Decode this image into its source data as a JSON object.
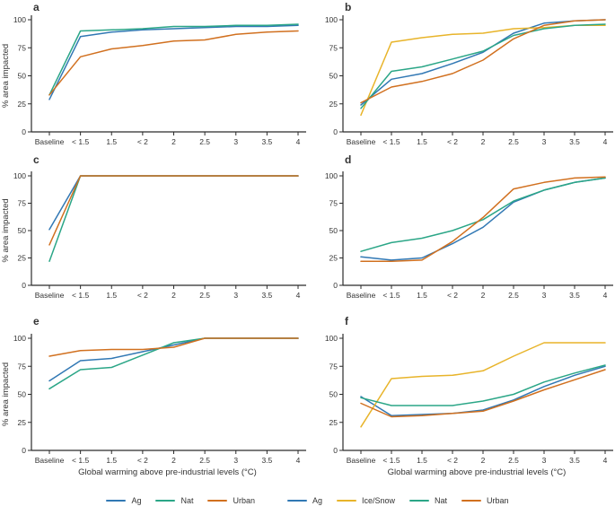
{
  "figure": {
    "ylabel": "% area impacted",
    "xlabel": "Global warming above pre-industrial levels (°C)"
  },
  "axes": {
    "categories": [
      "Baseline",
      "< 1.5",
      "1.5",
      "< 2",
      "2",
      "2.5",
      "3",
      "3.5",
      "4"
    ],
    "yticks": [
      0,
      25,
      50,
      75,
      100
    ],
    "ylim": [
      0,
      100
    ],
    "grid": false
  },
  "colors": {
    "ag": "#3178b4",
    "ice_snow": "#e8b42a",
    "nat": "#2ba687",
    "urban": "#d1701f",
    "axis": "#2b2b2b",
    "text": "#333333"
  },
  "legends": {
    "left": [
      {
        "label": "Ag",
        "color": "ag"
      },
      {
        "label": "Nat",
        "color": "nat"
      },
      {
        "label": "Urban",
        "color": "urban"
      }
    ],
    "right": [
      {
        "label": "Ag",
        "color": "ag"
      },
      {
        "label": "Ice/Snow",
        "color": "ice_snow"
      },
      {
        "label": "Nat",
        "color": "nat"
      },
      {
        "label": "Urban",
        "color": "urban"
      }
    ]
  },
  "chart_data": [
    {
      "panel": "a",
      "type": "line",
      "categories": [
        "Baseline",
        "< 1.5",
        "1.5",
        "< 2",
        "2",
        "2.5",
        "3",
        "3.5",
        "4"
      ],
      "ylabel": "% area impacted",
      "ylim": [
        0,
        100
      ],
      "series": [
        {
          "name": "Ag",
          "color": "ag",
          "values": [
            29,
            85,
            89,
            91,
            92,
            93,
            94,
            94,
            95
          ]
        },
        {
          "name": "Nat",
          "color": "nat",
          "values": [
            33,
            90,
            91,
            92,
            94,
            94,
            95,
            95,
            96
          ]
        },
        {
          "name": "Urban",
          "color": "urban",
          "values": [
            33,
            67,
            74,
            77,
            81,
            82,
            87,
            89,
            90
          ]
        }
      ]
    },
    {
      "panel": "b",
      "type": "line",
      "categories": [
        "Baseline",
        "< 1.5",
        "1.5",
        "< 2",
        "2",
        "2.5",
        "3",
        "3.5",
        "4"
      ],
      "ylabel": "% area impacted",
      "ylim": [
        0,
        100
      ],
      "series": [
        {
          "name": "Ag",
          "color": "ag",
          "values": [
            24,
            47,
            52,
            61,
            71,
            88,
            97,
            99,
            100
          ]
        },
        {
          "name": "Ice/Snow",
          "color": "ice_snow",
          "values": [
            15,
            80,
            84,
            87,
            88,
            92,
            93,
            95,
            95
          ]
        },
        {
          "name": "Nat",
          "color": "nat",
          "values": [
            21,
            54,
            58,
            65,
            72,
            86,
            92,
            95,
            96
          ]
        },
        {
          "name": "Urban",
          "color": "urban",
          "values": [
            26,
            40,
            45,
            52,
            64,
            83,
            95,
            99,
            100
          ]
        }
      ]
    },
    {
      "panel": "c",
      "type": "line",
      "categories": [
        "Baseline",
        "< 1.5",
        "1.5",
        "< 2",
        "2",
        "2.5",
        "3",
        "3.5",
        "4"
      ],
      "ylabel": "% area impacted",
      "ylim": [
        0,
        100
      ],
      "series": [
        {
          "name": "Ag",
          "color": "ag",
          "values": [
            51,
            100,
            100,
            100,
            100,
            100,
            100,
            100,
            100
          ]
        },
        {
          "name": "Nat",
          "color": "nat",
          "values": [
            22,
            100,
            100,
            100,
            100,
            100,
            100,
            100,
            100
          ]
        },
        {
          "name": "Urban",
          "color": "urban",
          "values": [
            37,
            100,
            100,
            100,
            100,
            100,
            100,
            100,
            100
          ]
        }
      ]
    },
    {
      "panel": "d",
      "type": "line",
      "categories": [
        "Baseline",
        "< 1.5",
        "1.5",
        "< 2",
        "2",
        "2.5",
        "3",
        "3.5",
        "4"
      ],
      "ylabel": "% area impacted",
      "ylim": [
        0,
        100
      ],
      "series": [
        {
          "name": "Ag",
          "color": "ag",
          "values": [
            26,
            23,
            25,
            38,
            53,
            76,
            87,
            94,
            98
          ]
        },
        {
          "name": "Nat",
          "color": "nat",
          "values": [
            31,
            39,
            43,
            50,
            60,
            77,
            87,
            94,
            98
          ]
        },
        {
          "name": "Urban",
          "color": "urban",
          "values": [
            22,
            22,
            23,
            40,
            62,
            88,
            94,
            98,
            99
          ]
        }
      ]
    },
    {
      "panel": "e",
      "type": "line",
      "categories": [
        "Baseline",
        "< 1.5",
        "1.5",
        "< 2",
        "2",
        "2.5",
        "3",
        "3.5",
        "4"
      ],
      "ylabel": "% area impacted",
      "ylim": [
        0,
        100
      ],
      "xlabel": "Global warming above pre-industrial levels (°C)",
      "series": [
        {
          "name": "Ag",
          "color": "ag",
          "values": [
            62,
            80,
            82,
            88,
            94,
            100,
            100,
            100,
            100
          ]
        },
        {
          "name": "Nat",
          "color": "nat",
          "values": [
            55,
            72,
            74,
            85,
            96,
            100,
            100,
            100,
            100
          ]
        },
        {
          "name": "Urban",
          "color": "urban",
          "values": [
            84,
            89,
            90,
            90,
            92,
            100,
            100,
            100,
            100
          ]
        }
      ]
    },
    {
      "panel": "f",
      "type": "line",
      "categories": [
        "Baseline",
        "< 1.5",
        "1.5",
        "< 2",
        "2",
        "2.5",
        "3",
        "3.5",
        "4"
      ],
      "ylabel": "% area impacted",
      "ylim": [
        0,
        100
      ],
      "xlabel": "Global warming above pre-industrial levels (°C)",
      "series": [
        {
          "name": "Ag",
          "color": "ag",
          "values": [
            48,
            31,
            32,
            33,
            36,
            45,
            57,
            67,
            75
          ]
        },
        {
          "name": "Ice/Snow",
          "color": "ice_snow",
          "values": [
            21,
            64,
            66,
            67,
            71,
            84,
            96,
            96,
            96
          ]
        },
        {
          "name": "Nat",
          "color": "nat",
          "values": [
            47,
            40,
            40,
            40,
            44,
            50,
            61,
            69,
            76
          ]
        },
        {
          "name": "Urban",
          "color": "urban",
          "values": [
            42,
            30,
            31,
            33,
            35,
            44,
            54,
            63,
            72
          ]
        }
      ]
    }
  ]
}
